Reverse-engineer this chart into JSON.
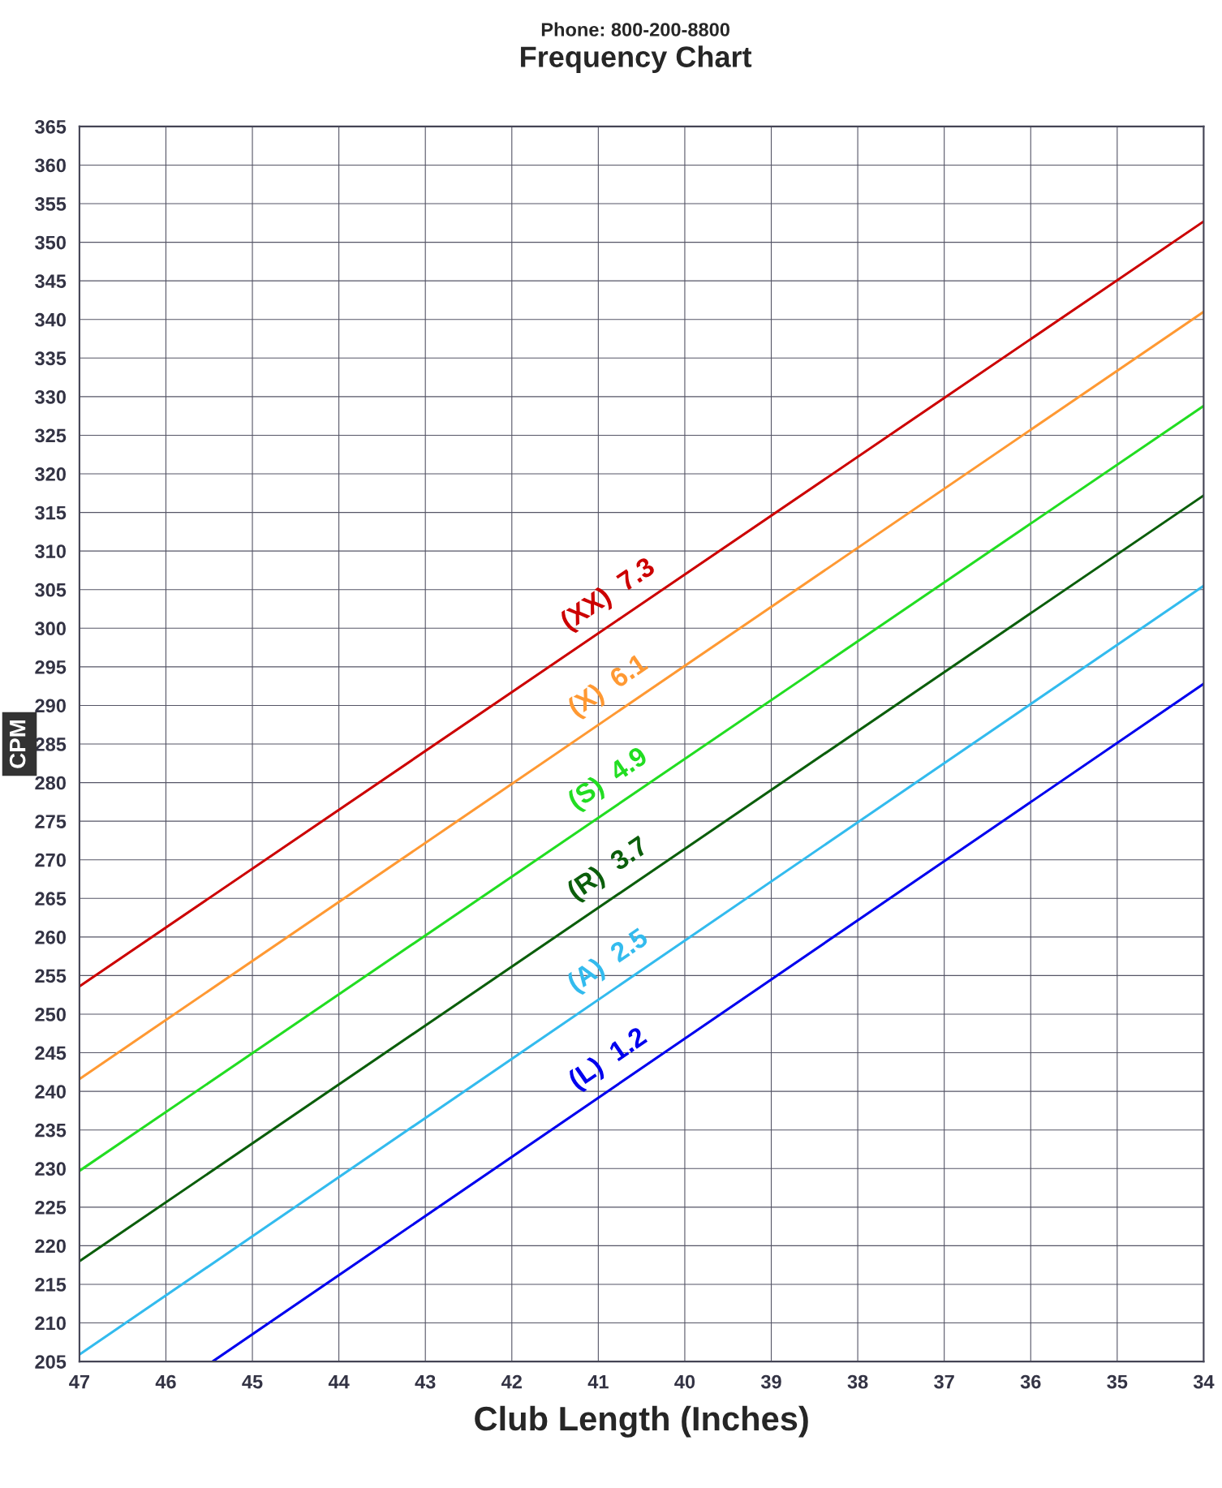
{
  "chart_data": {
    "type": "line",
    "title": "Frequency Chart",
    "xlabel": "Club Length (Inches)",
    "ylabel": "CPM",
    "annotations": [
      "Phone: 800-200-8800"
    ],
    "xlim": [
      47,
      34
    ],
    "xticks": [
      47,
      46,
      45,
      44,
      43,
      42,
      41,
      40,
      39,
      38,
      37,
      36,
      35,
      34
    ],
    "ylim": [
      205,
      365
    ],
    "yticks": [
      205,
      210,
      215,
      220,
      225,
      230,
      235,
      240,
      245,
      250,
      255,
      260,
      265,
      270,
      275,
      280,
      285,
      290,
      295,
      300,
      305,
      310,
      315,
      320,
      325,
      330,
      335,
      340,
      345,
      350,
      355,
      360,
      365
    ],
    "grid": true,
    "legend": false,
    "marker": "none",
    "line_style": "solid",
    "series": [
      {
        "name": "(XX)  7.3",
        "color": "#cc0000",
        "x": [
          47,
          34
        ],
        "values": [
          253.6,
          352.7
        ]
      },
      {
        "name": "(X)  6.1",
        "color": "#ff9933",
        "x": [
          47,
          34
        ],
        "values": [
          241.6,
          341.0
        ]
      },
      {
        "name": "(S)  4.9",
        "color": "#22dd22",
        "x": [
          47,
          34
        ],
        "values": [
          229.7,
          328.8
        ]
      },
      {
        "name": "(R)  3.7",
        "color": "#0b5e0b",
        "x": [
          47,
          34
        ],
        "values": [
          218.0,
          317.2
        ]
      },
      {
        "name": "(A)  2.5",
        "color": "#33bbee",
        "x": [
          47,
          34
        ],
        "values": [
          205.9,
          305.5
        ]
      },
      {
        "name": "(L)  1.2",
        "color": "#0000ee",
        "x": [
          45.46,
          34
        ],
        "values": [
          205,
          292.8
        ]
      }
    ]
  }
}
